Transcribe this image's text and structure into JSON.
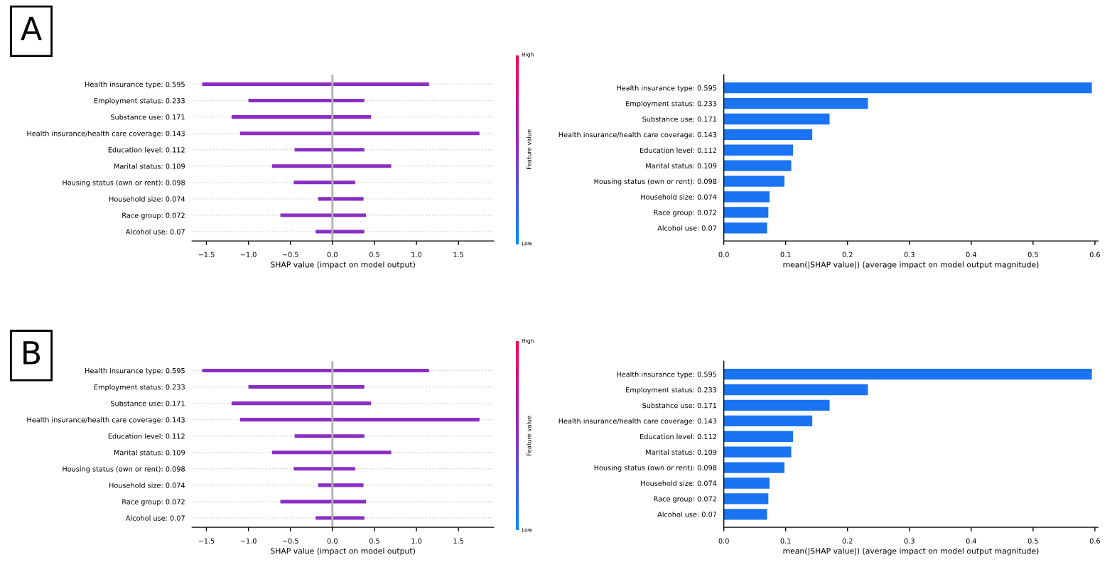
{
  "chart_data": [
    {
      "type": "bar",
      "orientation": "horizontal",
      "annotations": [
        "A",
        "High",
        "Low"
      ],
      "xlabel": "SHAP value (impact on model output)",
      "clabel": "Feature value",
      "categories": [
        "Health insurance type: 0.595",
        "Employment status: 0.233",
        "Substance use: 0.171",
        "Health insurance/health care coverage: 0.143",
        "Education level: 0.112",
        "Marital status: 0.109",
        "Housing status (own or rent): 0.098",
        "Household size: 0.074",
        "Race group: 0.072",
        "Alcohol use: 0.07"
      ],
      "base": [
        -1.55,
        -1.0,
        -1.2,
        -1.1,
        -0.45,
        -0.72,
        -0.46,
        -0.17,
        -0.62,
        -0.2
      ],
      "values": [
        2.7,
        1.38,
        1.66,
        2.85,
        0.83,
        1.42,
        0.73,
        0.54,
        1.02,
        0.58
      ],
      "color": "#8a2ec4",
      "xlim": [
        -1.67,
        1.92
      ],
      "xticks": [
        {
          "value": -1.5,
          "label": "−1.5"
        },
        {
          "value": -1.0,
          "label": "−1.0"
        },
        {
          "value": -0.5,
          "label": "−0.5"
        },
        {
          "value": 0,
          "label": "0.0"
        },
        {
          "value": 0.5,
          "label": "0.5"
        },
        {
          "value": 1.0,
          "label": "1.0"
        },
        {
          "value": 1.5,
          "label": "1.5"
        }
      ],
      "ref_lines": [
        {
          "axis": "x",
          "value": 0,
          "color": "#b0b0b0"
        }
      ],
      "grid": "y"
    },
    {
      "type": "bar",
      "orientation": "horizontal",
      "xlabel": "mean(|SHAP value|) (average impact on model output magnitude)",
      "categories": [
        "Health insurance type: 0.595",
        "Employment status: 0.233",
        "Substance use: 0.171",
        "Health insurance/health care coverage: 0.143",
        "Education level: 0.112",
        "Marital status: 0.109",
        "Housing status (own or rent): 0.098",
        "Household size: 0.074",
        "Race group: 0.072",
        "Alcohol use: 0.07"
      ],
      "values": [
        0.595,
        0.233,
        0.171,
        0.143,
        0.112,
        0.109,
        0.098,
        0.074,
        0.072,
        0.07
      ],
      "color": "#1a73f0",
      "xlim": [
        0,
        0.605
      ],
      "xticks": [
        {
          "value": 0,
          "label": "0.0"
        },
        {
          "value": 0.1,
          "label": "0.1"
        },
        {
          "value": 0.2,
          "label": "0.2"
        },
        {
          "value": 0.3,
          "label": "0.3"
        },
        {
          "value": 0.4,
          "label": "0.4"
        },
        {
          "value": 0.5,
          "label": "0.5"
        },
        {
          "value": 0.6,
          "label": "0.6"
        }
      ]
    },
    {
      "type": "bar",
      "orientation": "horizontal",
      "annotations": [
        "B",
        "High",
        "Low"
      ],
      "xlabel": "SHAP value (impact on model output)",
      "clabel": "Feature value",
      "categories": [
        "Health insurance type: 0.595",
        "Employment status: 0.233",
        "Substance use: 0.171",
        "Health insurance/health care coverage: 0.143",
        "Education level: 0.112",
        "Marital status: 0.109",
        "Housing status (own or rent): 0.098",
        "Household size: 0.074",
        "Race group: 0.072",
        "Alcohol use: 0.07"
      ],
      "base": [
        -1.55,
        -1.0,
        -1.2,
        -1.1,
        -0.45,
        -0.72,
        -0.46,
        -0.17,
        -0.62,
        -0.2
      ],
      "values": [
        2.7,
        1.38,
        1.66,
        2.85,
        0.83,
        1.42,
        0.73,
        0.54,
        1.02,
        0.58
      ],
      "color": "#8a2ec4",
      "xlim": [
        -1.67,
        1.92
      ],
      "xticks": [
        {
          "value": -1.5,
          "label": "−1.5"
        },
        {
          "value": -1.0,
          "label": "−1.0"
        },
        {
          "value": -0.5,
          "label": "−0.5"
        },
        {
          "value": 0,
          "label": "0.0"
        },
        {
          "value": 0.5,
          "label": "0.5"
        },
        {
          "value": 1.0,
          "label": "1.0"
        },
        {
          "value": 1.5,
          "label": "1.5"
        }
      ],
      "ref_lines": [
        {
          "axis": "x",
          "value": 0,
          "color": "#b0b0b0"
        }
      ],
      "grid": "y"
    },
    {
      "type": "bar",
      "orientation": "horizontal",
      "xlabel": "mean(|SHAP value|) (average impact on model output magnitude)",
      "categories": [
        "Health insurance type: 0.595",
        "Employment status: 0.233",
        "Substance use: 0.171",
        "Health insurance/health care coverage: 0.143",
        "Education level: 0.112",
        "Marital status: 0.109",
        "Housing status (own or rent): 0.098",
        "Household size: 0.074",
        "Race group: 0.072",
        "Alcohol use: 0.07"
      ],
      "values": [
        0.595,
        0.233,
        0.171,
        0.143,
        0.112,
        0.109,
        0.098,
        0.074,
        0.072,
        0.07
      ],
      "color": "#1a73f0",
      "xlim": [
        0,
        0.605
      ],
      "xticks": [
        {
          "value": 0,
          "label": "0.0"
        },
        {
          "value": 0.1,
          "label": "0.1"
        },
        {
          "value": 0.2,
          "label": "0.2"
        },
        {
          "value": 0.3,
          "label": "0.3"
        },
        {
          "value": 0.4,
          "label": "0.4"
        },
        {
          "value": 0.5,
          "label": "0.5"
        },
        {
          "value": 0.6,
          "label": "0.6"
        }
      ]
    }
  ]
}
